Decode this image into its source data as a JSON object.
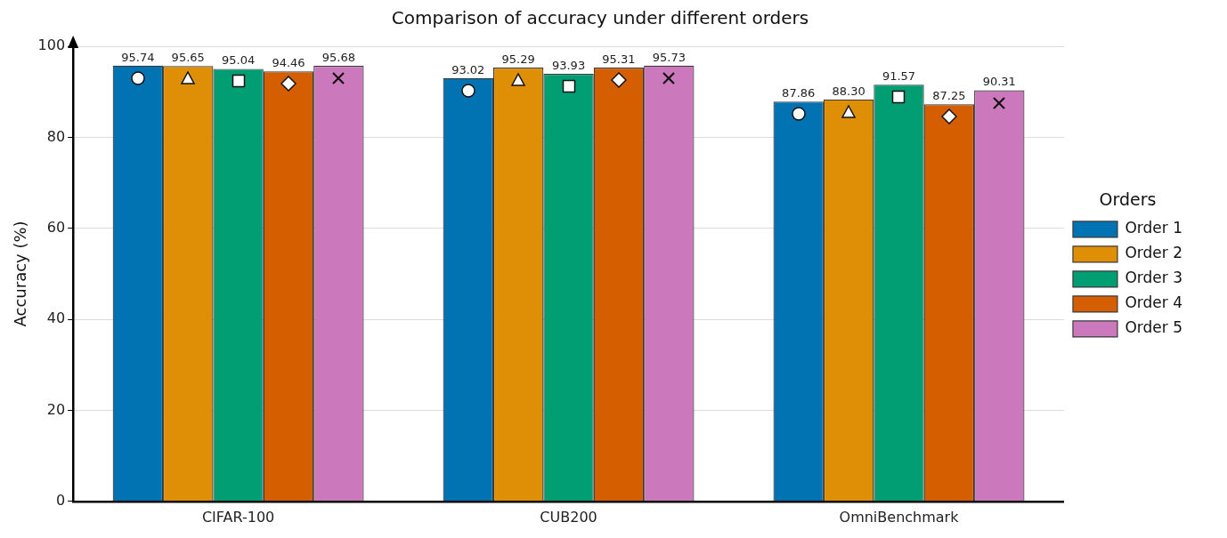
{
  "chart_data": {
    "type": "bar",
    "title": "Comparison of accuracy under different orders",
    "ylabel": "Accuracy (%)",
    "legend_title": "Orders",
    "categories": [
      "CIFAR-100",
      "CUB200",
      "OmniBenchmark"
    ],
    "series": [
      {
        "name": "Order 1",
        "color": "#0173b2",
        "values": [
          95.74,
          93.02,
          87.86
        ],
        "value_labels": [
          "95.74",
          "93.02",
          "87.86"
        ]
      },
      {
        "name": "Order 2",
        "color": "#de8f05",
        "values": [
          95.65,
          95.29,
          88.3
        ],
        "value_labels": [
          "95.65",
          "95.29",
          "88.30"
        ]
      },
      {
        "name": "Order 3",
        "color": "#029e73",
        "values": [
          95.04,
          93.93,
          91.57
        ],
        "value_labels": [
          "95.04",
          "93.93",
          "91.57"
        ]
      },
      {
        "name": "Order 4",
        "color": "#d55e00",
        "values": [
          94.46,
          95.31,
          87.25
        ],
        "value_labels": [
          "94.46",
          "95.31",
          "87.25"
        ]
      },
      {
        "name": "Order 5",
        "color": "#cc78bc",
        "values": [
          95.68,
          95.73,
          90.31
        ],
        "value_labels": [
          "95.68",
          "95.73",
          "90.31"
        ]
      }
    ],
    "ylim": [
      0,
      100
    ],
    "yticks": [
      0,
      20,
      40,
      60,
      80,
      100
    ],
    "grid": "y",
    "legend": "right"
  }
}
